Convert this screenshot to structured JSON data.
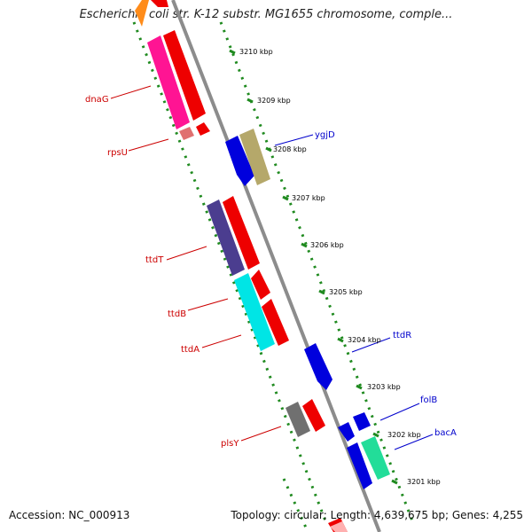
{
  "title": "Escherichia coli str. K-12 substr. MG1655 chromosome, comple...",
  "accession": "Accession: NC_000913",
  "topology": "Topology: circular; Length: 4,639,675 bp; Genes: 4,255",
  "colors": {
    "backbone": "#8c8c8c",
    "track_dots": "#1f8a1f",
    "reverse_label": "#cc0000",
    "forward_label": "#0000cc"
  },
  "ticks": [
    "3210 kbp",
    "3209 kbp",
    "3208 kbp",
    "3207 kbp",
    "3206 kbp",
    "3205 kbp",
    "3204 kbp",
    "3203 kbp",
    "3202 kbp",
    "3201 kbp"
  ],
  "genes_reverse": [
    "dnaG",
    "rpsU",
    "ttdT",
    "ttdB",
    "ttdA",
    "plsY"
  ],
  "genes_forward": [
    "ygjD",
    "ttdR",
    "folB",
    "bacA"
  ]
}
